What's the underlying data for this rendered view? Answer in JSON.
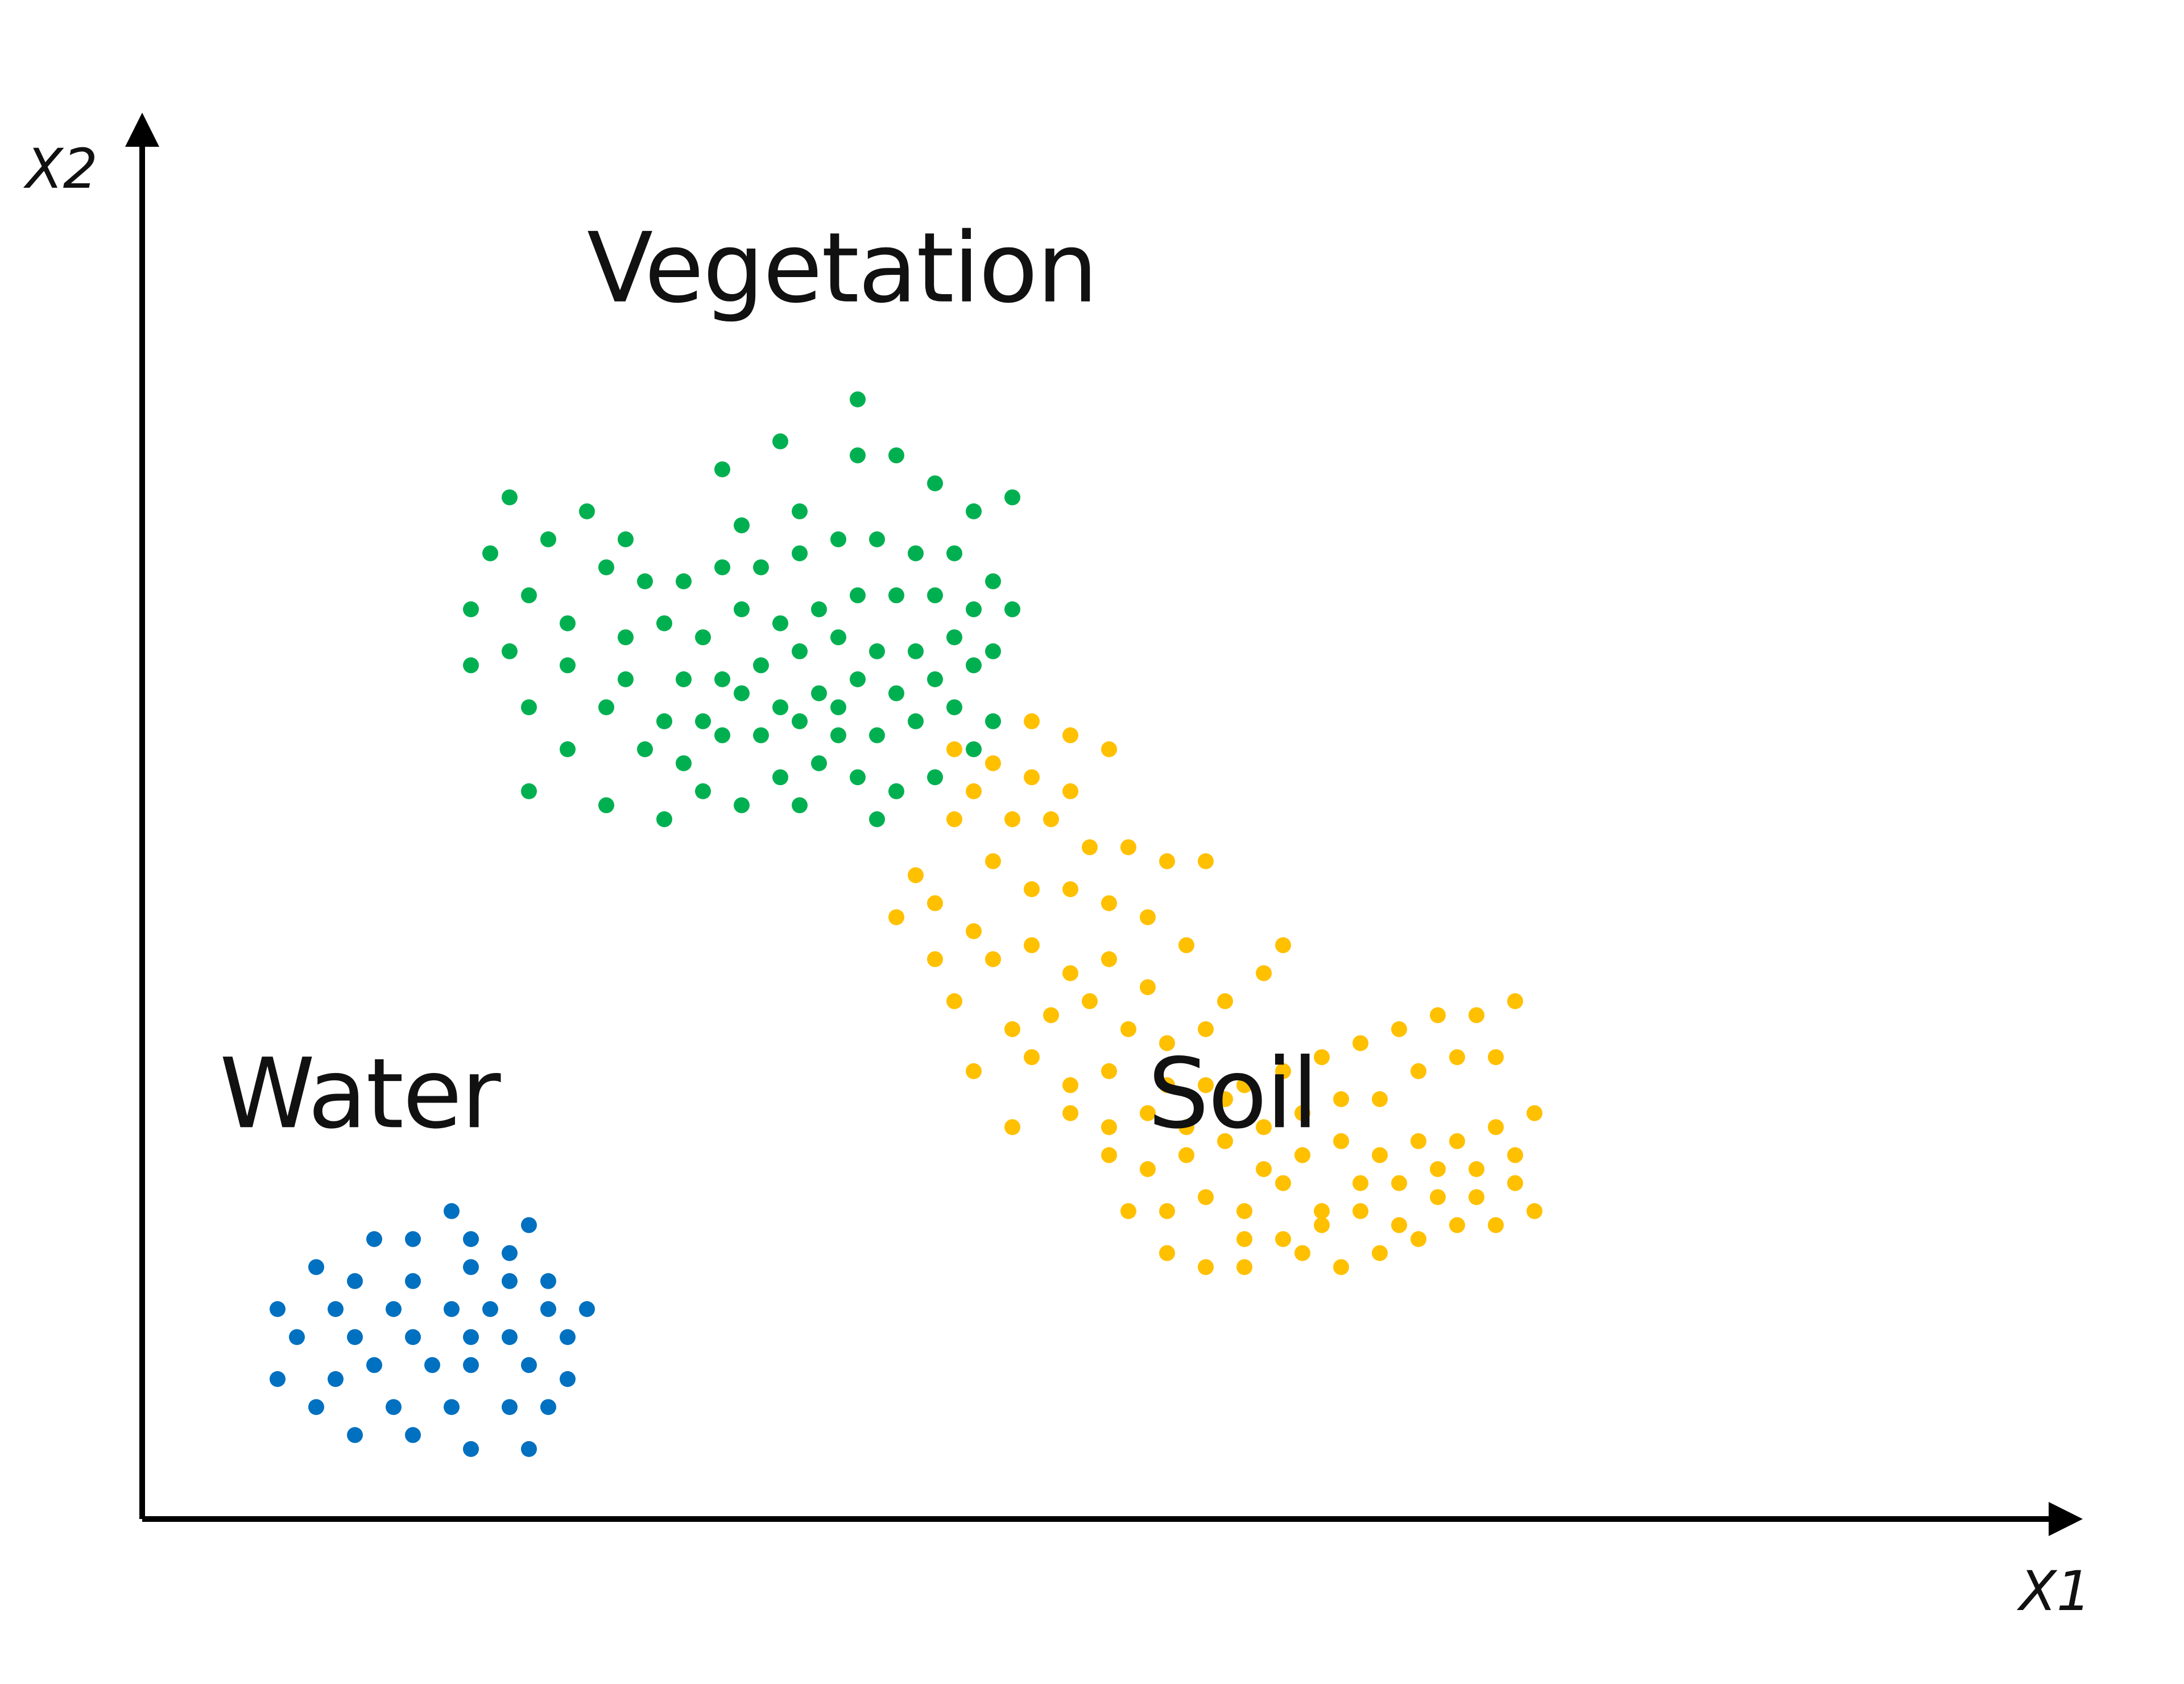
{
  "chart_data": {
    "type": "scatter",
    "title": "",
    "xlabel": "X1",
    "ylabel": "X2",
    "xlim": [
      0,
      1
    ],
    "ylim": [
      0,
      1
    ],
    "grid": false,
    "axis_ticks": false,
    "series": [
      {
        "name": "Vegetation",
        "color": "#00b050",
        "points": [
          [
            0.37,
            0.8
          ],
          [
            0.33,
            0.77
          ],
          [
            0.3,
            0.75
          ],
          [
            0.23,
            0.72
          ],
          [
            0.25,
            0.7
          ],
          [
            0.31,
            0.71
          ],
          [
            0.34,
            0.72
          ],
          [
            0.37,
            0.76
          ],
          [
            0.39,
            0.76
          ],
          [
            0.41,
            0.74
          ],
          [
            0.43,
            0.72
          ],
          [
            0.45,
            0.73
          ],
          [
            0.19,
            0.73
          ],
          [
            0.21,
            0.7
          ],
          [
            0.24,
            0.68
          ],
          [
            0.26,
            0.67
          ],
          [
            0.28,
            0.67
          ],
          [
            0.3,
            0.68
          ],
          [
            0.32,
            0.68
          ],
          [
            0.34,
            0.69
          ],
          [
            0.36,
            0.7
          ],
          [
            0.38,
            0.7
          ],
          [
            0.4,
            0.69
          ],
          [
            0.42,
            0.69
          ],
          [
            0.44,
            0.67
          ],
          [
            0.18,
            0.69
          ],
          [
            0.2,
            0.66
          ],
          [
            0.22,
            0.64
          ],
          [
            0.25,
            0.63
          ],
          [
            0.27,
            0.64
          ],
          [
            0.29,
            0.63
          ],
          [
            0.31,
            0.65
          ],
          [
            0.33,
            0.64
          ],
          [
            0.35,
            0.65
          ],
          [
            0.37,
            0.66
          ],
          [
            0.39,
            0.66
          ],
          [
            0.41,
            0.66
          ],
          [
            0.43,
            0.65
          ],
          [
            0.45,
            0.65
          ],
          [
            0.17,
            0.65
          ],
          [
            0.19,
            0.62
          ],
          [
            0.22,
            0.61
          ],
          [
            0.25,
            0.6
          ],
          [
            0.28,
            0.6
          ],
          [
            0.3,
            0.6
          ],
          [
            0.32,
            0.61
          ],
          [
            0.34,
            0.62
          ],
          [
            0.36,
            0.63
          ],
          [
            0.38,
            0.62
          ],
          [
            0.4,
            0.62
          ],
          [
            0.42,
            0.63
          ],
          [
            0.44,
            0.62
          ],
          [
            0.17,
            0.61
          ],
          [
            0.2,
            0.58
          ],
          [
            0.24,
            0.58
          ],
          [
            0.27,
            0.57
          ],
          [
            0.29,
            0.57
          ],
          [
            0.31,
            0.59
          ],
          [
            0.33,
            0.58
          ],
          [
            0.35,
            0.59
          ],
          [
            0.37,
            0.6
          ],
          [
            0.39,
            0.59
          ],
          [
            0.41,
            0.6
          ],
          [
            0.43,
            0.61
          ],
          [
            0.22,
            0.55
          ],
          [
            0.26,
            0.55
          ],
          [
            0.28,
            0.54
          ],
          [
            0.3,
            0.56
          ],
          [
            0.32,
            0.56
          ],
          [
            0.34,
            0.57
          ],
          [
            0.36,
            0.56
          ],
          [
            0.38,
            0.56
          ],
          [
            0.4,
            0.57
          ],
          [
            0.42,
            0.58
          ],
          [
            0.2,
            0.52
          ],
          [
            0.24,
            0.51
          ],
          [
            0.27,
            0.5
          ],
          [
            0.29,
            0.52
          ],
          [
            0.31,
            0.51
          ],
          [
            0.33,
            0.53
          ],
          [
            0.35,
            0.54
          ],
          [
            0.37,
            0.53
          ],
          [
            0.39,
            0.52
          ],
          [
            0.41,
            0.53
          ],
          [
            0.43,
            0.55
          ],
          [
            0.44,
            0.57
          ],
          [
            0.34,
            0.51
          ],
          [
            0.38,
            0.5
          ],
          [
            0.36,
            0.58
          ]
        ]
      },
      {
        "name": "Soil",
        "color": "#ffc000",
        "points": [
          [
            0.46,
            0.57
          ],
          [
            0.48,
            0.56
          ],
          [
            0.5,
            0.55
          ],
          [
            0.42,
            0.55
          ],
          [
            0.44,
            0.54
          ],
          [
            0.46,
            0.53
          ],
          [
            0.48,
            0.52
          ],
          [
            0.43,
            0.52
          ],
          [
            0.45,
            0.5
          ],
          [
            0.47,
            0.5
          ],
          [
            0.49,
            0.48
          ],
          [
            0.51,
            0.48
          ],
          [
            0.53,
            0.47
          ],
          [
            0.55,
            0.47
          ],
          [
            0.42,
            0.5
          ],
          [
            0.44,
            0.47
          ],
          [
            0.46,
            0.45
          ],
          [
            0.48,
            0.45
          ],
          [
            0.5,
            0.44
          ],
          [
            0.52,
            0.43
          ],
          [
            0.54,
            0.41
          ],
          [
            0.4,
            0.46
          ],
          [
            0.41,
            0.44
          ],
          [
            0.43,
            0.42
          ],
          [
            0.46,
            0.41
          ],
          [
            0.48,
            0.39
          ],
          [
            0.5,
            0.4
          ],
          [
            0.52,
            0.38
          ],
          [
            0.39,
            0.43
          ],
          [
            0.41,
            0.4
          ],
          [
            0.44,
            0.4
          ],
          [
            0.42,
            0.37
          ],
          [
            0.45,
            0.35
          ],
          [
            0.47,
            0.36
          ],
          [
            0.49,
            0.37
          ],
          [
            0.51,
            0.35
          ],
          [
            0.53,
            0.34
          ],
          [
            0.55,
            0.35
          ],
          [
            0.56,
            0.37
          ],
          [
            0.58,
            0.39
          ],
          [
            0.59,
            0.41
          ],
          [
            0.43,
            0.32
          ],
          [
            0.46,
            0.33
          ],
          [
            0.48,
            0.31
          ],
          [
            0.5,
            0.32
          ],
          [
            0.53,
            0.31
          ],
          [
            0.55,
            0.31
          ],
          [
            0.57,
            0.31
          ],
          [
            0.59,
            0.32
          ],
          [
            0.61,
            0.33
          ],
          [
            0.63,
            0.34
          ],
          [
            0.65,
            0.35
          ],
          [
            0.67,
            0.36
          ],
          [
            0.69,
            0.36
          ],
          [
            0.71,
            0.37
          ],
          [
            0.45,
            0.28
          ],
          [
            0.48,
            0.29
          ],
          [
            0.5,
            0.28
          ],
          [
            0.52,
            0.29
          ],
          [
            0.54,
            0.28
          ],
          [
            0.56,
            0.3
          ],
          [
            0.58,
            0.28
          ],
          [
            0.6,
            0.29
          ],
          [
            0.62,
            0.3
          ],
          [
            0.64,
            0.3
          ],
          [
            0.66,
            0.32
          ],
          [
            0.68,
            0.33
          ],
          [
            0.7,
            0.33
          ],
          [
            0.5,
            0.26
          ],
          [
            0.52,
            0.25
          ],
          [
            0.54,
            0.26
          ],
          [
            0.56,
            0.27
          ],
          [
            0.58,
            0.25
          ],
          [
            0.6,
            0.26
          ],
          [
            0.62,
            0.27
          ],
          [
            0.64,
            0.26
          ],
          [
            0.66,
            0.27
          ],
          [
            0.68,
            0.27
          ],
          [
            0.7,
            0.28
          ],
          [
            0.72,
            0.29
          ],
          [
            0.51,
            0.22
          ],
          [
            0.53,
            0.22
          ],
          [
            0.55,
            0.23
          ],
          [
            0.57,
            0.22
          ],
          [
            0.59,
            0.24
          ],
          [
            0.61,
            0.22
          ],
          [
            0.63,
            0.24
          ],
          [
            0.65,
            0.24
          ],
          [
            0.67,
            0.25
          ],
          [
            0.69,
            0.25
          ],
          [
            0.71,
            0.26
          ],
          [
            0.53,
            0.19
          ],
          [
            0.57,
            0.2
          ],
          [
            0.59,
            0.2
          ],
          [
            0.61,
            0.21
          ],
          [
            0.63,
            0.22
          ],
          [
            0.65,
            0.21
          ],
          [
            0.67,
            0.23
          ],
          [
            0.69,
            0.23
          ],
          [
            0.71,
            0.24
          ],
          [
            0.55,
            0.18
          ],
          [
            0.57,
            0.18
          ],
          [
            0.6,
            0.19
          ],
          [
            0.62,
            0.18
          ],
          [
            0.64,
            0.19
          ],
          [
            0.66,
            0.2
          ],
          [
            0.68,
            0.21
          ],
          [
            0.7,
            0.21
          ],
          [
            0.72,
            0.22
          ]
        ]
      },
      {
        "name": "Water",
        "color": "#0070c0",
        "points": [
          [
            0.16,
            0.22
          ],
          [
            0.12,
            0.2
          ],
          [
            0.14,
            0.2
          ],
          [
            0.17,
            0.2
          ],
          [
            0.19,
            0.19
          ],
          [
            0.2,
            0.21
          ],
          [
            0.09,
            0.18
          ],
          [
            0.11,
            0.17
          ],
          [
            0.14,
            0.17
          ],
          [
            0.17,
            0.18
          ],
          [
            0.19,
            0.17
          ],
          [
            0.21,
            0.17
          ],
          [
            0.07,
            0.15
          ],
          [
            0.1,
            0.15
          ],
          [
            0.13,
            0.15
          ],
          [
            0.16,
            0.15
          ],
          [
            0.18,
            0.15
          ],
          [
            0.21,
            0.15
          ],
          [
            0.23,
            0.15
          ],
          [
            0.08,
            0.13
          ],
          [
            0.11,
            0.13
          ],
          [
            0.14,
            0.13
          ],
          [
            0.17,
            0.13
          ],
          [
            0.19,
            0.13
          ],
          [
            0.22,
            0.13
          ],
          [
            0.07,
            0.1
          ],
          [
            0.1,
            0.1
          ],
          [
            0.12,
            0.11
          ],
          [
            0.15,
            0.11
          ],
          [
            0.17,
            0.11
          ],
          [
            0.2,
            0.11
          ],
          [
            0.22,
            0.1
          ],
          [
            0.09,
            0.08
          ],
          [
            0.13,
            0.08
          ],
          [
            0.16,
            0.08
          ],
          [
            0.19,
            0.08
          ],
          [
            0.21,
            0.08
          ],
          [
            0.11,
            0.06
          ],
          [
            0.14,
            0.06
          ],
          [
            0.17,
            0.05
          ],
          [
            0.2,
            0.05
          ]
        ]
      }
    ],
    "annotations": [
      {
        "text": "Vegetation",
        "x": 0.23,
        "y": 0.87
      },
      {
        "text": "Water",
        "x": 0.04,
        "y": 0.28
      },
      {
        "text": "Soil",
        "x": 0.52,
        "y": 0.28
      }
    ]
  }
}
